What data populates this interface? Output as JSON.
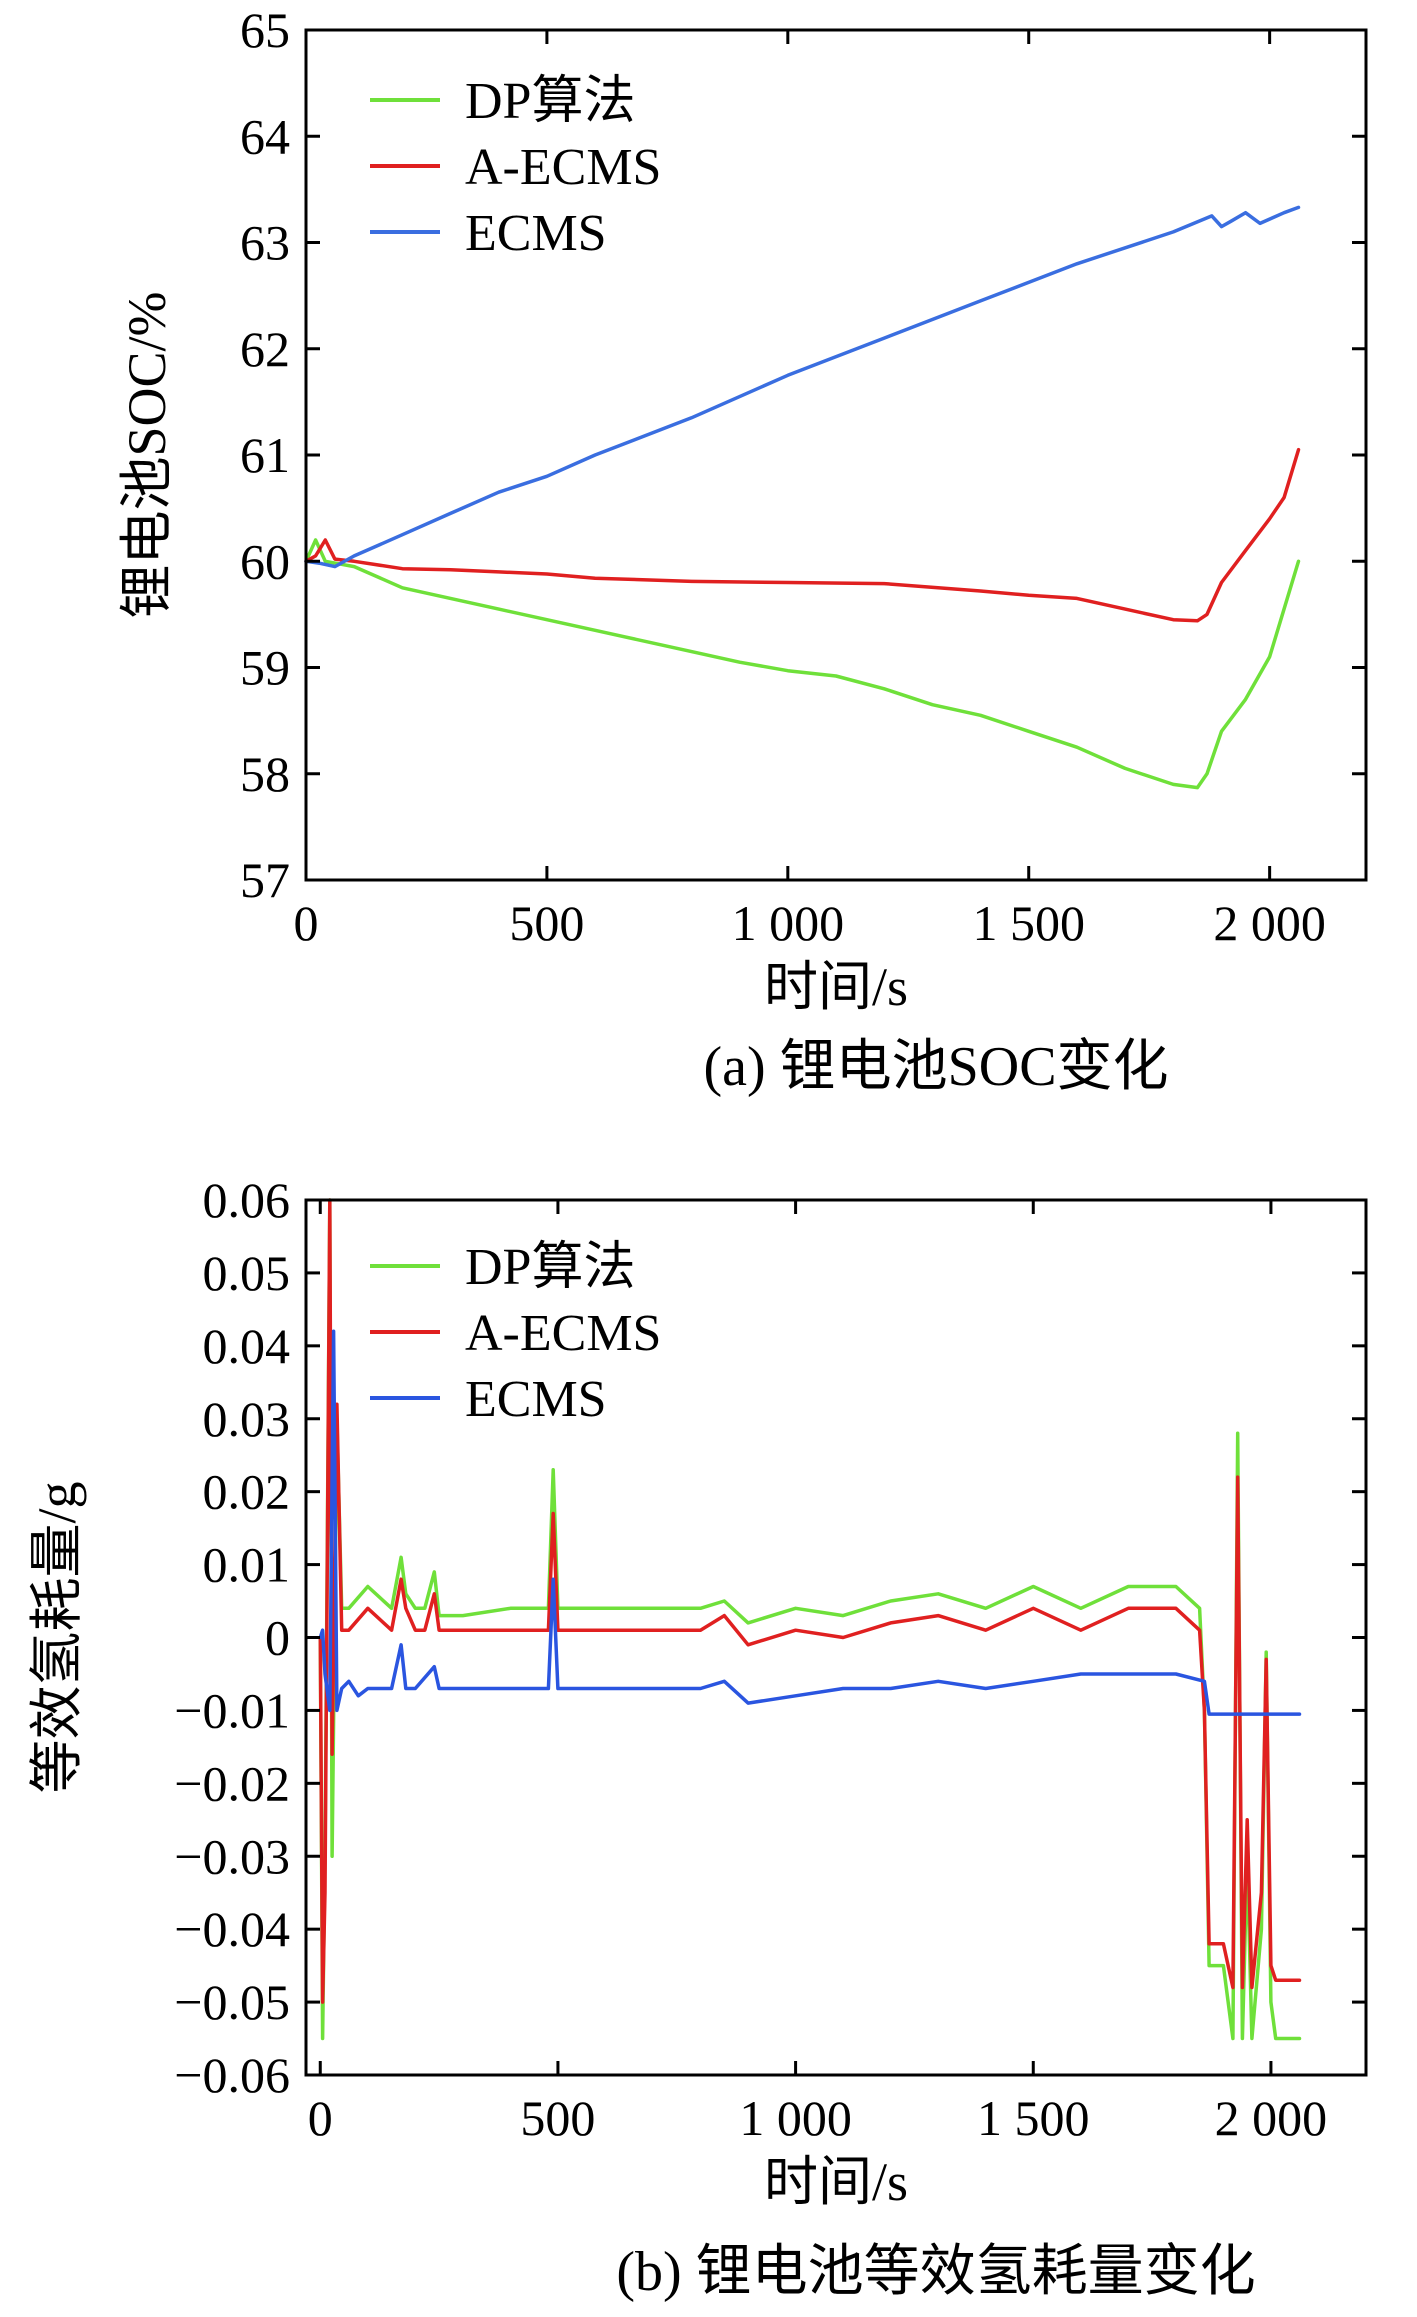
{
  "chart_data": [
    {
      "type": "line",
      "title": "",
      "caption": "(a) 锂电池SOC变化",
      "xlabel": "时间/s",
      "ylabel": "锂电池SOC/%",
      "xlim": [
        0,
        2200
      ],
      "ylim": [
        57,
        65
      ],
      "xticks": [
        0,
        500,
        1000,
        1500,
        2000
      ],
      "xtick_labels": [
        "0",
        "500",
        "1 000",
        "1 500",
        "2 000"
      ],
      "yticks": [
        57,
        58,
        59,
        60,
        61,
        62,
        63,
        64,
        65
      ],
      "ytick_labels": [
        "57",
        "58",
        "59",
        "60",
        "61",
        "62",
        "63",
        "64",
        "65"
      ],
      "legend_position": "top-left",
      "series": [
        {
          "name": "DP算法",
          "color": "#6fe03a",
          "x": [
            0,
            20,
            40,
            100,
            200,
            300,
            400,
            500,
            600,
            800,
            900,
            1000,
            1100,
            1200,
            1300,
            1400,
            1500,
            1600,
            1700,
            1800,
            1850,
            1870,
            1900,
            1950,
            2000,
            2060
          ],
          "y": [
            60.0,
            60.2,
            60.0,
            59.95,
            59.75,
            59.65,
            59.55,
            59.45,
            59.35,
            59.15,
            59.05,
            58.97,
            58.92,
            58.8,
            58.65,
            58.55,
            58.4,
            58.25,
            58.05,
            57.9,
            57.87,
            58.0,
            58.4,
            58.7,
            59.1,
            60.0
          ]
        },
        {
          "name": "A-ECMS",
          "color": "#e02020",
          "x": [
            0,
            20,
            40,
            60,
            100,
            200,
            300,
            400,
            500,
            600,
            800,
            1000,
            1200,
            1400,
            1500,
            1600,
            1700,
            1800,
            1850,
            1870,
            1900,
            1950,
            2000,
            2030,
            2060
          ],
          "y": [
            60.0,
            60.05,
            60.2,
            60.02,
            60.0,
            59.93,
            59.92,
            59.9,
            59.88,
            59.84,
            59.81,
            59.8,
            59.79,
            59.72,
            59.68,
            59.65,
            59.55,
            59.45,
            59.44,
            59.5,
            59.8,
            60.1,
            60.4,
            60.6,
            61.05
          ]
        },
        {
          "name": "ECMS",
          "color": "#3a6ee0",
          "x": [
            0,
            30,
            60,
            100,
            200,
            300,
            400,
            500,
            600,
            800,
            1000,
            1200,
            1400,
            1600,
            1800,
            1880,
            1900,
            1920,
            1950,
            1980,
            2000,
            2030,
            2060
          ],
          "y": [
            60.0,
            59.98,
            59.95,
            60.05,
            60.25,
            60.45,
            60.65,
            60.8,
            61.0,
            61.35,
            61.75,
            62.1,
            62.45,
            62.8,
            63.1,
            63.25,
            63.15,
            63.2,
            63.28,
            63.18,
            63.22,
            63.28,
            63.33
          ]
        }
      ]
    },
    {
      "type": "line",
      "title": "",
      "caption": "(b) 锂电池等效氢耗量变化",
      "xlabel": "时间/s",
      "ylabel": "等效氢耗量/g",
      "xlim": [
        -30,
        2200
      ],
      "ylim": [
        -0.06,
        0.06
      ],
      "xticks": [
        0,
        500,
        1000,
        1500,
        2000
      ],
      "xtick_labels": [
        "0",
        "500",
        "1 000",
        "1 500",
        "2 000"
      ],
      "yticks": [
        -0.06,
        -0.05,
        -0.04,
        -0.03,
        -0.02,
        -0.01,
        0,
        0.01,
        0.02,
        0.03,
        0.04,
        0.05,
        0.06
      ],
      "ytick_labels": [
        "−0.06",
        "−0.05",
        "−0.04",
        "−0.03",
        "−0.02",
        "−0.01",
        "0",
        "0.01",
        "0.02",
        "0.03",
        "0.04",
        "0.05",
        "0.06"
      ],
      "legend_position": "top-left",
      "series": [
        {
          "name": "DP算法",
          "color": "#6fe03a",
          "x": [
            0,
            5,
            10,
            20,
            25,
            35,
            45,
            60,
            100,
            150,
            170,
            180,
            200,
            220,
            240,
            250,
            300,
            400,
            480,
            490,
            500,
            520,
            600,
            800,
            850,
            900,
            1000,
            1100,
            1200,
            1300,
            1400,
            1500,
            1600,
            1700,
            1800,
            1850,
            1860,
            1870,
            1900,
            1920,
            1930,
            1940,
            1950,
            1960,
            1980,
            1990,
            2000,
            2010,
            2060
          ],
          "y": [
            0,
            -0.055,
            -0.03,
            0.06,
            -0.03,
            0.03,
            0.004,
            0.004,
            0.007,
            0.004,
            0.011,
            0.006,
            0.004,
            0.004,
            0.009,
            0.003,
            0.003,
            0.004,
            0.004,
            0.023,
            0.004,
            0.004,
            0.004,
            0.004,
            0.005,
            0.002,
            0.004,
            0.003,
            0.005,
            0.006,
            0.004,
            0.007,
            0.004,
            0.007,
            0.007,
            0.004,
            -0.01,
            -0.045,
            -0.045,
            -0.055,
            0.028,
            -0.055,
            -0.03,
            -0.055,
            -0.04,
            -0.002,
            -0.05,
            -0.055,
            -0.055
          ]
        },
        {
          "name": "A-ECMS",
          "color": "#e02020",
          "x": [
            0,
            5,
            10,
            20,
            25,
            35,
            45,
            60,
            100,
            150,
            170,
            180,
            200,
            220,
            240,
            250,
            300,
            400,
            480,
            490,
            500,
            520,
            600,
            800,
            850,
            900,
            1000,
            1100,
            1200,
            1300,
            1400,
            1500,
            1600,
            1700,
            1800,
            1850,
            1860,
            1870,
            1900,
            1920,
            1930,
            1940,
            1950,
            1960,
            1980,
            1990,
            2000,
            2010,
            2060
          ],
          "y": [
            0,
            -0.05,
            -0.035,
            0.06,
            -0.016,
            0.032,
            0.001,
            0.001,
            0.004,
            0.001,
            0.008,
            0.004,
            0.001,
            0.001,
            0.006,
            0.001,
            0.001,
            0.001,
            0.001,
            0.017,
            0.001,
            0.001,
            0.001,
            0.001,
            0.003,
            -0.001,
            0.001,
            0.0,
            0.002,
            0.003,
            0.001,
            0.004,
            0.001,
            0.004,
            0.004,
            0.001,
            -0.01,
            -0.042,
            -0.042,
            -0.048,
            0.022,
            -0.048,
            -0.025,
            -0.048,
            -0.035,
            -0.003,
            -0.045,
            -0.047,
            -0.047
          ]
        },
        {
          "name": "ECMS",
          "color": "#2a55e0",
          "x": [
            0,
            5,
            10,
            20,
            28,
            35,
            45,
            60,
            80,
            100,
            150,
            170,
            180,
            200,
            240,
            250,
            300,
            400,
            480,
            490,
            500,
            520,
            600,
            800,
            850,
            900,
            1000,
            1100,
            1200,
            1300,
            1400,
            1500,
            1600,
            1700,
            1800,
            1860,
            1870,
            2060
          ],
          "y": [
            0,
            0.001,
            -0.005,
            -0.01,
            0.042,
            -0.01,
            -0.007,
            -0.006,
            -0.008,
            -0.007,
            -0.007,
            -0.001,
            -0.007,
            -0.007,
            -0.004,
            -0.007,
            -0.007,
            -0.007,
            -0.007,
            0.008,
            -0.007,
            -0.007,
            -0.007,
            -0.007,
            -0.006,
            -0.009,
            -0.008,
            -0.007,
            -0.007,
            -0.006,
            -0.007,
            -0.006,
            -0.005,
            -0.005,
            -0.005,
            -0.006,
            -0.0105,
            -0.0105
          ]
        }
      ]
    }
  ]
}
